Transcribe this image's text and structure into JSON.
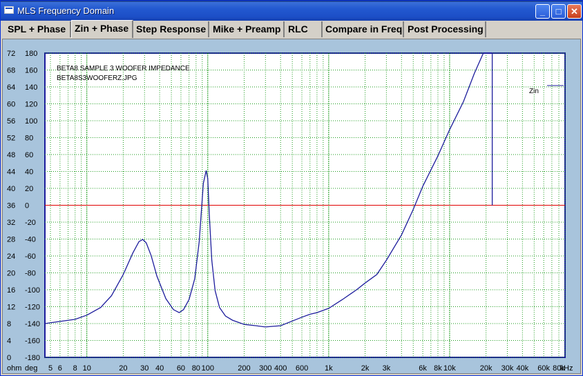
{
  "window": {
    "title": "MLS Frequency Domain",
    "buttons": {
      "minimize": "_",
      "maximize": "□",
      "close": "✕"
    }
  },
  "tabs": [
    {
      "label": "SPL + Phase",
      "active": false
    },
    {
      "label": "Zin + Phase",
      "active": true
    },
    {
      "label": "Step Response",
      "active": false
    },
    {
      "label": "Mike + Preamp",
      "active": false
    },
    {
      "label": "RLC",
      "active": false
    },
    {
      "label": "Compare in Freq",
      "active": false
    },
    {
      "label": "Post Processing",
      "active": false
    }
  ],
  "chart_data": {
    "type": "line",
    "annotations": [
      "BETA8 SAMPLE 3 WOOFER IMPEDANCE",
      "BETA8S3WOOFERZ.JPG"
    ],
    "x_scale": "log",
    "xlim": [
      4.5,
      90000
    ],
    "x_ticks": [
      5,
      6,
      8,
      10,
      20,
      30,
      40,
      60,
      80,
      100,
      200,
      300,
      400,
      600,
      1000,
      2000,
      3000,
      6000,
      8000,
      10000,
      20000,
      30000,
      40000,
      60000,
      80000
    ],
    "x_tick_labels": [
      "5",
      "6",
      "8",
      "10",
      "20",
      "30",
      "40",
      "60",
      "80",
      "100",
      "200",
      "300",
      "400",
      "600",
      "1k",
      "2k",
      "3k",
      "6k",
      "8k",
      "10k",
      "20k",
      "30k",
      "40k",
      "60k",
      "80k"
    ],
    "x_unit": "Hz",
    "y_left_label": "ohm",
    "y_left_ticks": [
      0,
      4,
      8,
      12,
      16,
      20,
      24,
      28,
      32,
      36,
      40,
      44,
      48,
      52,
      56,
      60,
      64,
      68,
      72
    ],
    "y_left_lim": [
      0,
      72
    ],
    "y_right_label": "deg",
    "y_right_ticks": [
      -180,
      -160,
      -140,
      -120,
      -100,
      -80,
      -60,
      -40,
      -20,
      0,
      20,
      40,
      60,
      80,
      100,
      120,
      140,
      160,
      180
    ],
    "grid": true,
    "legend": "top-right",
    "reference_line_deg": 0,
    "series": [
      {
        "name": "Zin",
        "color": "#1c1c9c",
        "x": [
          4.5,
          6,
          8,
          10,
          13,
          16,
          20,
          24,
          27,
          29,
          31,
          34,
          38,
          45,
          52,
          58,
          63,
          70,
          78,
          85,
          92,
          97,
          100,
          103,
          108,
          115,
          125,
          140,
          160,
          200,
          250,
          300,
          400,
          500,
          600,
          700,
          800,
          1000,
          1300,
          1700,
          2000,
          2500,
          3000,
          4000,
          5000,
          6000,
          8000,
          10000,
          13000,
          16000,
          19000,
          20000,
          21000,
          22500,
          22500
        ],
        "y": [
          8.0,
          8.5,
          9.0,
          10.0,
          11.8,
          14.6,
          19.6,
          24.7,
          27.4,
          27.9,
          27.1,
          24.1,
          19.2,
          13.9,
          11.3,
          10.6,
          11.3,
          13.7,
          18.6,
          27.4,
          41.2,
          44.2,
          42.2,
          33.8,
          23.0,
          15.8,
          11.8,
          9.8,
          8.8,
          7.8,
          7.5,
          7.2,
          7.5,
          8.6,
          9.5,
          10.2,
          10.6,
          11.6,
          13.7,
          16.0,
          17.6,
          19.6,
          23.0,
          29.0,
          35.0,
          40.5,
          47.7,
          53.9,
          60.5,
          67.2,
          72.0,
          72.0,
          72.0,
          72.0,
          36.0
        ]
      }
    ]
  },
  "labels": {
    "legend_zin": "Zin",
    "unit_khz": "kHz",
    "ohm": "ohm",
    "deg": "deg"
  }
}
